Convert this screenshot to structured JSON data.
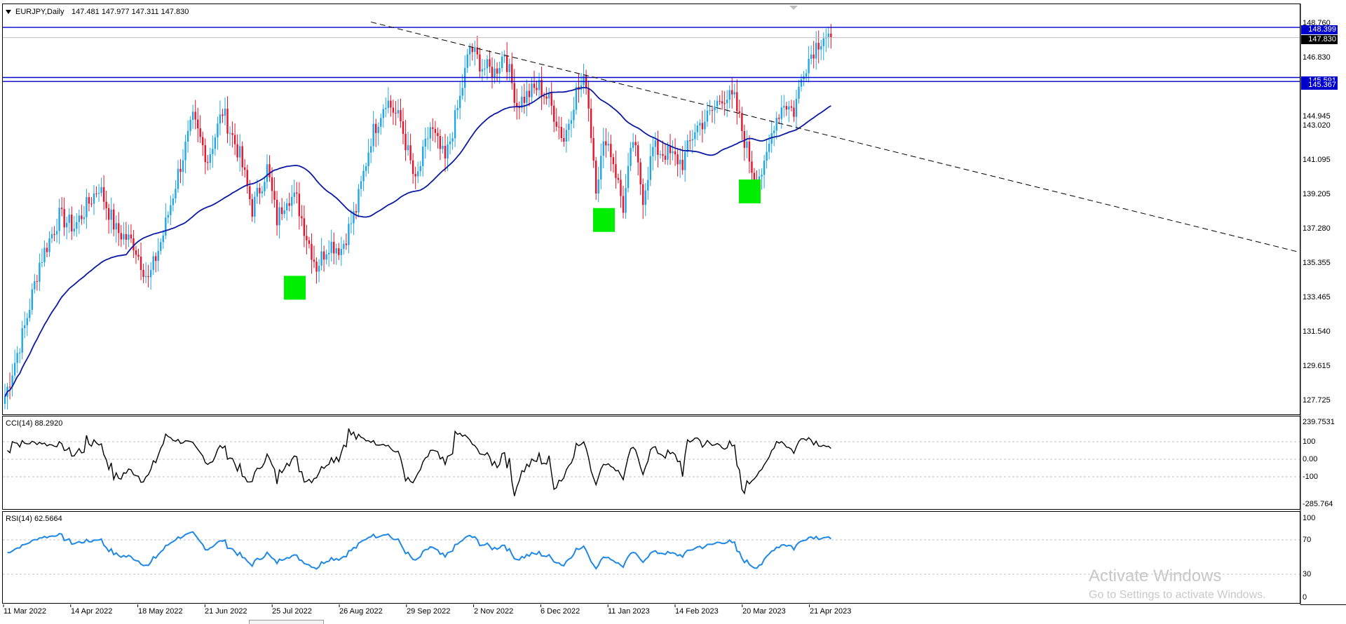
{
  "header": {
    "symbol": "EURJPY,Daily",
    "ohlc": "147.481 147.977 147.311 147.830"
  },
  "price_axis": [
    "148.760",
    "146.830",
    "144.945",
    "143.020",
    "141.095",
    "139.205",
    "137.280",
    "135.355",
    "133.465",
    "131.540",
    "129.615",
    "127.725"
  ],
  "price_tags": [
    {
      "text": "148.399",
      "color": "#0000cc",
      "value": 148.399
    },
    {
      "text": "147.830",
      "color": "#000000",
      "value": 147.83
    },
    {
      "text": "145.591",
      "color": "#0000cc",
      "value": 145.591
    },
    {
      "text": "145.367",
      "color": "#0000cc",
      "value": 145.367
    }
  ],
  "time_axis": [
    "11 Mar 2022",
    "14 Apr 2022",
    "18 May 2022",
    "21 Jun 2022",
    "25 Jul 2022",
    "26 Aug 2022",
    "29 Sep 2022",
    "2 Nov 2022",
    "6 Dec 2022",
    "11 Jan 2023",
    "14 Feb 2023",
    "20 Mar 2023",
    "21 Apr 2023"
  ],
  "cci": {
    "label": "CCI(14) 88.2920",
    "axis": [
      "239.7531",
      "100",
      "0.00",
      "-100",
      "-285.764"
    ]
  },
  "rsi": {
    "label": "RSI(14) 62.5664",
    "axis": [
      "100",
      "70",
      "30",
      "0"
    ]
  },
  "colors": {
    "bull": "#1ea7e8",
    "bear": "#e8132a",
    "ma": "#0a1aa6",
    "level": "#0000cc",
    "zone": "#00ee00",
    "cci_line": "#000000",
    "rsi_line": "#1e88e5"
  },
  "icons": {
    "collapse": "triangle-down-icon"
  },
  "watermark": {
    "title": "Activate Windows",
    "subtitle": "Go to Settings to activate Windows."
  },
  "chart_data": {
    "type": "candlestick",
    "symbol": "EURJPY",
    "timeframe": "Daily",
    "ylim": [
      126.7,
      149.7
    ],
    "horizontal_levels": [
      148.399,
      145.591,
      145.367
    ],
    "last_close": 147.83,
    "trendline": {
      "from": [
        "29 Sep 2022",
        148.7
      ],
      "to": [
        "right edge",
        135.8
      ],
      "style": "dashed"
    },
    "demand_zones": [
      {
        "near": "25 Jul 2022",
        "price": 133.8
      },
      {
        "near": "11 Jan 2023",
        "price": 137.6
      },
      {
        "near": "20 Mar 2023",
        "price": 139.2
      }
    ],
    "anchors": [
      {
        "t": 0,
        "p": 127.7
      },
      {
        "t": 8,
        "p": 131.6
      },
      {
        "t": 14,
        "p": 135.2
      },
      {
        "t": 22,
        "p": 137.8
      },
      {
        "t": 28,
        "p": 137.2
      },
      {
        "t": 38,
        "p": 139.5
      },
      {
        "t": 45,
        "p": 137.0
      },
      {
        "t": 52,
        "p": 136.3
      },
      {
        "t": 58,
        "p": 134.2
      },
      {
        "t": 64,
        "p": 136.8
      },
      {
        "t": 70,
        "p": 140.2
      },
      {
        "t": 76,
        "p": 143.2
      },
      {
        "t": 82,
        "p": 141.0
      },
      {
        "t": 88,
        "p": 143.7
      },
      {
        "t": 95,
        "p": 141.2
      },
      {
        "t": 100,
        "p": 138.2
      },
      {
        "t": 106,
        "p": 140.5
      },
      {
        "t": 110,
        "p": 137.6
      },
      {
        "t": 114,
        "p": 139.0
      },
      {
        "t": 118,
        "p": 138.7
      },
      {
        "t": 122,
        "p": 136.7
      },
      {
        "t": 126,
        "p": 135.0
      },
      {
        "t": 131,
        "p": 136.3
      },
      {
        "t": 136,
        "p": 136.0
      },
      {
        "t": 142,
        "p": 138.2
      },
      {
        "t": 148,
        "p": 142.2
      },
      {
        "t": 154,
        "p": 144.4
      },
      {
        "t": 160,
        "p": 143.1
      },
      {
        "t": 166,
        "p": 139.6
      },
      {
        "t": 172,
        "p": 142.8
      },
      {
        "t": 178,
        "p": 140.9
      },
      {
        "t": 184,
        "p": 144.4
      },
      {
        "t": 188,
        "p": 147.3
      },
      {
        "t": 193,
        "p": 146.2
      },
      {
        "t": 198,
        "p": 145.9
      },
      {
        "t": 202,
        "p": 147.0
      },
      {
        "t": 207,
        "p": 144.1
      },
      {
        "t": 212,
        "p": 144.7
      },
      {
        "t": 216,
        "p": 145.1
      },
      {
        "t": 220,
        "p": 144.3
      },
      {
        "t": 226,
        "p": 142.1
      },
      {
        "t": 231,
        "p": 144.8
      },
      {
        "t": 235,
        "p": 145.4
      },
      {
        "t": 239,
        "p": 139.6
      },
      {
        "t": 243,
        "p": 142.3
      },
      {
        "t": 246,
        "p": 140.9
      },
      {
        "t": 250,
        "p": 138.3
      },
      {
        "t": 254,
        "p": 142.1
      },
      {
        "t": 258,
        "p": 138.9
      },
      {
        "t": 262,
        "p": 141.6
      },
      {
        "t": 268,
        "p": 141.3
      },
      {
        "t": 274,
        "p": 140.8
      },
      {
        "t": 279,
        "p": 142.7
      },
      {
        "t": 285,
        "p": 143.5
      },
      {
        "t": 290,
        "p": 144.6
      },
      {
        "t": 295,
        "p": 144.3
      },
      {
        "t": 299,
        "p": 142.1
      },
      {
        "t": 303,
        "p": 140.0
      },
      {
        "t": 307,
        "p": 140.4
      },
      {
        "t": 311,
        "p": 143.1
      },
      {
        "t": 315,
        "p": 144.2
      },
      {
        "t": 319,
        "p": 143.7
      },
      {
        "t": 323,
        "p": 146.1
      },
      {
        "t": 327,
        "p": 147.2
      },
      {
        "t": 331,
        "p": 148.0
      },
      {
        "t": 334,
        "p": 147.8
      }
    ]
  }
}
